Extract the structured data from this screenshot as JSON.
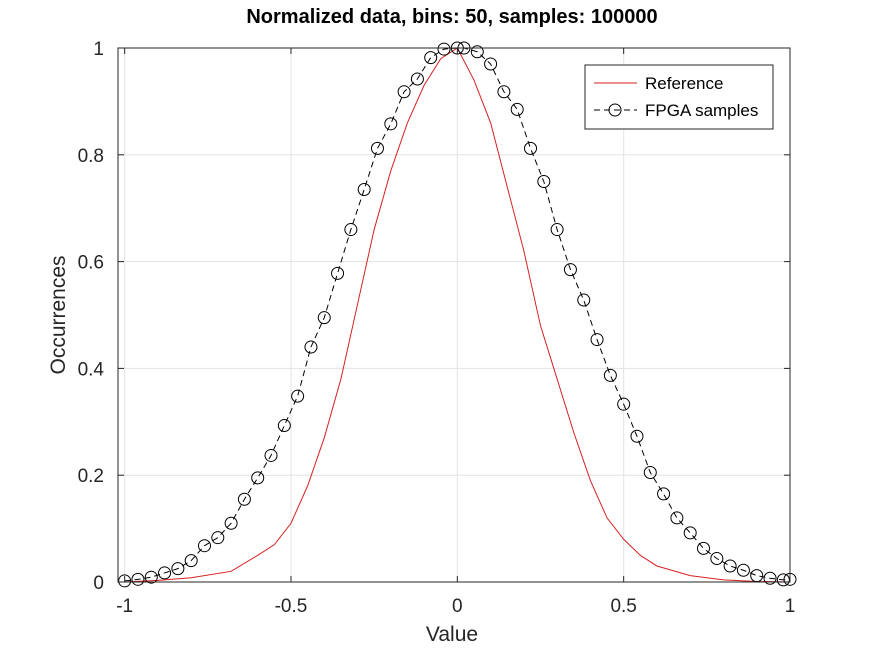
{
  "chart_data": {
    "type": "line",
    "title": "Normalized data, bins: 50, samples: 100000",
    "xlabel": "Value",
    "ylabel": "Occurrences",
    "xlim": [
      -1.02,
      1.0
    ],
    "ylim": [
      0,
      1
    ],
    "xticks": [
      -1,
      -0.5,
      0,
      0.5,
      1
    ],
    "xtick_labels": [
      "-1",
      "-0.5",
      "0",
      "0.5",
      "1"
    ],
    "yticks": [
      0,
      0.2,
      0.4,
      0.6,
      0.8,
      1
    ],
    "ytick_labels": [
      "0",
      "0.2",
      "0.4",
      "0.6",
      "0.8",
      "1"
    ],
    "grid": true,
    "legend_position": "top-right",
    "series": [
      {
        "name": "Reference",
        "color": "#d62020",
        "line": "solid",
        "marker": "none",
        "x": [
          -1.0,
          -0.9,
          -0.8,
          -0.68,
          -0.6,
          -0.55,
          -0.5,
          -0.45,
          -0.4,
          -0.35,
          -0.3,
          -0.25,
          -0.2,
          -0.15,
          -0.1,
          -0.05,
          0.0,
          0.05,
          0.1,
          0.15,
          0.2,
          0.25,
          0.3,
          0.35,
          0.4,
          0.45,
          0.5,
          0.55,
          0.6,
          0.7,
          0.8,
          0.9,
          1.0
        ],
        "y": [
          0.0,
          0.003,
          0.008,
          0.02,
          0.05,
          0.07,
          0.11,
          0.18,
          0.27,
          0.38,
          0.52,
          0.66,
          0.77,
          0.86,
          0.93,
          0.98,
          1.0,
          0.94,
          0.86,
          0.74,
          0.62,
          0.48,
          0.38,
          0.28,
          0.19,
          0.12,
          0.08,
          0.05,
          0.03,
          0.012,
          0.004,
          0.001,
          0.0
        ]
      },
      {
        "name": "FPGA samples",
        "color": "#000000",
        "line": "dashed",
        "marker": "circle-open",
        "x": [
          -1.0,
          -0.96,
          -0.92,
          -0.88,
          -0.84,
          -0.8,
          -0.76,
          -0.72,
          -0.68,
          -0.64,
          -0.6,
          -0.56,
          -0.52,
          -0.48,
          -0.44,
          -0.4,
          -0.36,
          -0.32,
          -0.28,
          -0.24,
          -0.2,
          -0.16,
          -0.12,
          -0.08,
          -0.04,
          0.0,
          0.02,
          0.06,
          0.1,
          0.14,
          0.18,
          0.22,
          0.26,
          0.3,
          0.34,
          0.38,
          0.42,
          0.46,
          0.5,
          0.54,
          0.58,
          0.62,
          0.66,
          0.7,
          0.74,
          0.78,
          0.82,
          0.86,
          0.9,
          0.94,
          0.98,
          1.0
        ],
        "y": [
          0.002,
          0.005,
          0.009,
          0.017,
          0.025,
          0.04,
          0.068,
          0.083,
          0.11,
          0.155,
          0.195,
          0.237,
          0.293,
          0.348,
          0.44,
          0.495,
          0.578,
          0.66,
          0.735,
          0.812,
          0.858,
          0.918,
          0.942,
          0.982,
          0.998,
          1.0,
          1.0,
          0.993,
          0.97,
          0.918,
          0.885,
          0.812,
          0.75,
          0.66,
          0.585,
          0.528,
          0.454,
          0.387,
          0.333,
          0.273,
          0.205,
          0.165,
          0.12,
          0.092,
          0.063,
          0.044,
          0.03,
          0.022,
          0.012,
          0.007,
          0.004,
          0.005
        ]
      }
    ]
  }
}
